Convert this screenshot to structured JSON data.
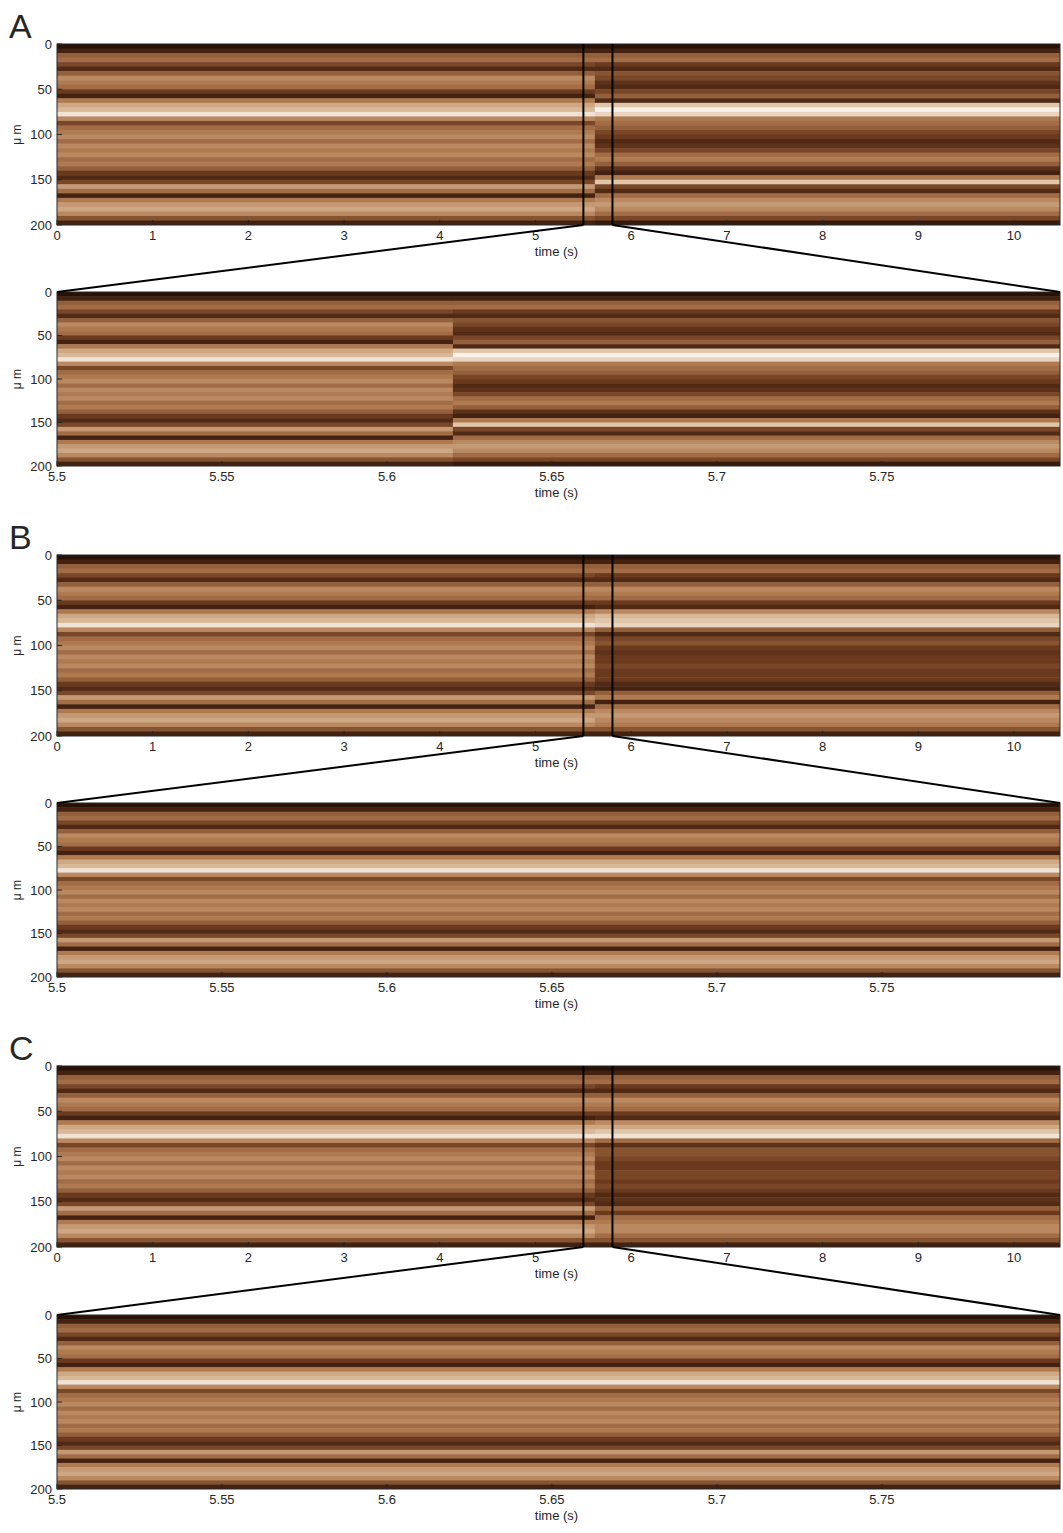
{
  "chart_data": [
    {
      "type": "heatmap",
      "panel_label": "A",
      "xlabel": "time (s)",
      "ylabel": "μ m",
      "xlim": [
        0,
        10.48
      ],
      "xticks": [
        0,
        1,
        2,
        3,
        4,
        5,
        6,
        7,
        8,
        9,
        10
      ],
      "ylim": [
        0,
        200
      ],
      "yticks": [
        0,
        50,
        100,
        150,
        200
      ],
      "zlim": [
        0,
        1
      ],
      "zoom_range": [
        5.5,
        5.804
      ],
      "x_edges": [
        0,
        5.62,
        10.48
      ],
      "y_edges": [
        0,
        5,
        10,
        15,
        20,
        25,
        30,
        35,
        40,
        45,
        50,
        55,
        60,
        65,
        70,
        75,
        80,
        85,
        90,
        95,
        100,
        105,
        110,
        115,
        120,
        125,
        130,
        135,
        140,
        145,
        150,
        155,
        160,
        165,
        170,
        175,
        180,
        185,
        190,
        195,
        200
      ],
      "cells": [
        [
          0.05,
          0.15,
          0.45,
          0.5,
          0.35,
          0.2,
          0.45,
          0.6,
          0.55,
          0.5,
          0.3,
          0.15,
          0.55,
          0.7,
          0.75,
          0.9,
          0.6,
          0.35,
          0.5,
          0.55,
          0.6,
          0.5,
          0.6,
          0.55,
          0.6,
          0.5,
          0.55,
          0.45,
          0.3,
          0.2,
          0.35,
          0.65,
          0.5,
          0.15,
          0.55,
          0.65,
          0.7,
          0.6,
          0.4,
          0.15
        ],
        [
          0.05,
          0.15,
          0.45,
          0.5,
          0.3,
          0.2,
          0.4,
          0.35,
          0.25,
          0.2,
          0.35,
          0.45,
          0.2,
          0.8,
          0.95,
          0.85,
          0.55,
          0.5,
          0.45,
          0.35,
          0.3,
          0.2,
          0.25,
          0.35,
          0.5,
          0.55,
          0.45,
          0.25,
          0.15,
          0.55,
          0.8,
          0.35,
          0.2,
          0.5,
          0.6,
          0.65,
          0.6,
          0.5,
          0.35,
          0.1
        ]
      ]
    },
    {
      "type": "heatmap",
      "xlabel": "time (s)",
      "ylabel": "μ m",
      "xlim": [
        5.5,
        5.804
      ],
      "xticks": [
        5.5,
        5.55,
        5.6,
        5.65,
        5.7,
        5.75
      ],
      "ylim": [
        0,
        200
      ],
      "yticks": [
        0,
        50,
        100,
        150,
        200
      ],
      "zlim": [
        0,
        1
      ],
      "x_edges": [
        5.5,
        5.62,
        5.804
      ],
      "y_edges": [
        0,
        5,
        10,
        15,
        20,
        25,
        30,
        35,
        40,
        45,
        50,
        55,
        60,
        65,
        70,
        75,
        80,
        85,
        90,
        95,
        100,
        105,
        110,
        115,
        120,
        125,
        130,
        135,
        140,
        145,
        150,
        155,
        160,
        165,
        170,
        175,
        180,
        185,
        190,
        195,
        200
      ],
      "cells": [
        [
          0.05,
          0.15,
          0.45,
          0.5,
          0.35,
          0.2,
          0.45,
          0.6,
          0.55,
          0.5,
          0.3,
          0.15,
          0.55,
          0.7,
          0.75,
          0.9,
          0.6,
          0.35,
          0.5,
          0.55,
          0.6,
          0.5,
          0.6,
          0.55,
          0.6,
          0.5,
          0.55,
          0.45,
          0.3,
          0.2,
          0.35,
          0.65,
          0.5,
          0.15,
          0.55,
          0.65,
          0.7,
          0.6,
          0.4,
          0.15
        ],
        [
          0.05,
          0.15,
          0.45,
          0.5,
          0.3,
          0.2,
          0.4,
          0.35,
          0.25,
          0.2,
          0.35,
          0.45,
          0.2,
          0.8,
          0.95,
          0.85,
          0.55,
          0.5,
          0.45,
          0.35,
          0.3,
          0.2,
          0.25,
          0.35,
          0.5,
          0.55,
          0.45,
          0.25,
          0.15,
          0.55,
          0.8,
          0.35,
          0.2,
          0.5,
          0.6,
          0.65,
          0.6,
          0.5,
          0.35,
          0.1
        ]
      ]
    },
    {
      "type": "heatmap",
      "panel_label": "B",
      "xlabel": "time (s)",
      "ylabel": "μ m",
      "xlim": [
        0,
        10.48
      ],
      "xticks": [
        0,
        1,
        2,
        3,
        4,
        5,
        6,
        7,
        8,
        9,
        10
      ],
      "ylim": [
        0,
        200
      ],
      "yticks": [
        0,
        50,
        100,
        150,
        200
      ],
      "zlim": [
        0,
        1
      ],
      "zoom_range": [
        5.5,
        5.804
      ],
      "x_edges": [
        0,
        5.62,
        10.48
      ],
      "y_edges": [
        0,
        5,
        10,
        15,
        20,
        25,
        30,
        35,
        40,
        45,
        50,
        55,
        60,
        65,
        70,
        75,
        80,
        85,
        90,
        95,
        100,
        105,
        110,
        115,
        120,
        125,
        130,
        135,
        140,
        145,
        150,
        155,
        160,
        165,
        170,
        175,
        180,
        185,
        190,
        195,
        200
      ],
      "cells": [
        [
          0.05,
          0.15,
          0.45,
          0.5,
          0.35,
          0.2,
          0.45,
          0.6,
          0.55,
          0.5,
          0.3,
          0.15,
          0.55,
          0.7,
          0.75,
          0.9,
          0.6,
          0.35,
          0.5,
          0.55,
          0.6,
          0.5,
          0.6,
          0.55,
          0.6,
          0.5,
          0.55,
          0.45,
          0.3,
          0.2,
          0.35,
          0.65,
          0.5,
          0.15,
          0.55,
          0.65,
          0.7,
          0.6,
          0.4,
          0.15
        ],
        [
          0.05,
          0.15,
          0.45,
          0.5,
          0.3,
          0.2,
          0.45,
          0.6,
          0.55,
          0.5,
          0.3,
          0.2,
          0.6,
          0.75,
          0.8,
          0.85,
          0.45,
          0.2,
          0.35,
          0.4,
          0.3,
          0.25,
          0.3,
          0.3,
          0.35,
          0.3,
          0.3,
          0.3,
          0.2,
          0.15,
          0.45,
          0.55,
          0.15,
          0.5,
          0.6,
          0.65,
          0.6,
          0.55,
          0.4,
          0.15
        ]
      ]
    },
    {
      "type": "heatmap",
      "xlabel": "time (s)",
      "ylabel": "μ m",
      "xlim": [
        5.5,
        5.804
      ],
      "xticks": [
        5.5,
        5.55,
        5.6,
        5.65,
        5.7,
        5.75
      ],
      "ylim": [
        0,
        200
      ],
      "yticks": [
        0,
        50,
        100,
        150,
        200
      ],
      "zlim": [
        0,
        1
      ],
      "x_edges": [
        5.5,
        5.804
      ],
      "y_edges": [
        0,
        5,
        10,
        15,
        20,
        25,
        30,
        35,
        40,
        45,
        50,
        55,
        60,
        65,
        70,
        75,
        80,
        85,
        90,
        95,
        100,
        105,
        110,
        115,
        120,
        125,
        130,
        135,
        140,
        145,
        150,
        155,
        160,
        165,
        170,
        175,
        180,
        185,
        190,
        195,
        200
      ],
      "cells": [
        [
          0.05,
          0.15,
          0.45,
          0.5,
          0.35,
          0.2,
          0.45,
          0.6,
          0.55,
          0.5,
          0.3,
          0.15,
          0.55,
          0.7,
          0.75,
          0.9,
          0.6,
          0.35,
          0.5,
          0.55,
          0.6,
          0.5,
          0.6,
          0.55,
          0.6,
          0.5,
          0.55,
          0.45,
          0.3,
          0.2,
          0.35,
          0.65,
          0.5,
          0.15,
          0.55,
          0.65,
          0.7,
          0.6,
          0.4,
          0.15
        ]
      ]
    },
    {
      "type": "heatmap",
      "panel_label": "C",
      "xlabel": "time (s)",
      "ylabel": "μ m",
      "xlim": [
        0,
        10.48
      ],
      "xticks": [
        0,
        1,
        2,
        3,
        4,
        5,
        6,
        7,
        8,
        9,
        10
      ],
      "ylim": [
        0,
        200
      ],
      "yticks": [
        0,
        50,
        100,
        150,
        200
      ],
      "zlim": [
        0,
        1
      ],
      "zoom_range": [
        5.5,
        5.804
      ],
      "x_edges": [
        0,
        5.62,
        10.48
      ],
      "y_edges": [
        0,
        5,
        10,
        15,
        20,
        25,
        30,
        35,
        40,
        45,
        50,
        55,
        60,
        65,
        70,
        75,
        80,
        85,
        90,
        95,
        100,
        105,
        110,
        115,
        120,
        125,
        130,
        135,
        140,
        145,
        150,
        155,
        160,
        165,
        170,
        175,
        180,
        185,
        190,
        195,
        200
      ],
      "cells": [
        [
          0.05,
          0.15,
          0.45,
          0.5,
          0.35,
          0.2,
          0.45,
          0.6,
          0.55,
          0.5,
          0.3,
          0.15,
          0.55,
          0.7,
          0.75,
          0.9,
          0.6,
          0.35,
          0.5,
          0.55,
          0.6,
          0.5,
          0.6,
          0.55,
          0.6,
          0.5,
          0.55,
          0.45,
          0.3,
          0.2,
          0.35,
          0.65,
          0.5,
          0.15,
          0.55,
          0.65,
          0.7,
          0.6,
          0.4,
          0.15
        ],
        [
          0.05,
          0.15,
          0.45,
          0.5,
          0.3,
          0.2,
          0.45,
          0.6,
          0.55,
          0.5,
          0.3,
          0.2,
          0.6,
          0.7,
          0.8,
          0.9,
          0.5,
          0.25,
          0.4,
          0.4,
          0.35,
          0.3,
          0.3,
          0.35,
          0.35,
          0.3,
          0.35,
          0.3,
          0.2,
          0.25,
          0.2,
          0.45,
          0.3,
          0.5,
          0.55,
          0.6,
          0.6,
          0.5,
          0.4,
          0.15
        ]
      ]
    },
    {
      "type": "heatmap",
      "xlabel": "time (s)",
      "ylabel": "μ m",
      "xlim": [
        5.5,
        5.804
      ],
      "xticks": [
        5.5,
        5.55,
        5.6,
        5.65,
        5.7,
        5.75
      ],
      "ylim": [
        0,
        200
      ],
      "yticks": [
        0,
        50,
        100,
        150,
        200
      ],
      "zlim": [
        0,
        1
      ],
      "x_edges": [
        5.5,
        5.804
      ],
      "y_edges": [
        0,
        5,
        10,
        15,
        20,
        25,
        30,
        35,
        40,
        45,
        50,
        55,
        60,
        65,
        70,
        75,
        80,
        85,
        90,
        95,
        100,
        105,
        110,
        115,
        120,
        125,
        130,
        135,
        140,
        145,
        150,
        155,
        160,
        165,
        170,
        175,
        180,
        185,
        190,
        195,
        200
      ],
      "cells": [
        [
          0.05,
          0.15,
          0.45,
          0.5,
          0.35,
          0.2,
          0.45,
          0.6,
          0.55,
          0.5,
          0.3,
          0.15,
          0.55,
          0.7,
          0.75,
          0.9,
          0.6,
          0.35,
          0.5,
          0.55,
          0.6,
          0.5,
          0.6,
          0.55,
          0.6,
          0.5,
          0.55,
          0.45,
          0.3,
          0.2,
          0.35,
          0.65,
          0.5,
          0.15,
          0.55,
          0.65,
          0.7,
          0.6,
          0.4,
          0.15
        ]
      ]
    }
  ]
}
